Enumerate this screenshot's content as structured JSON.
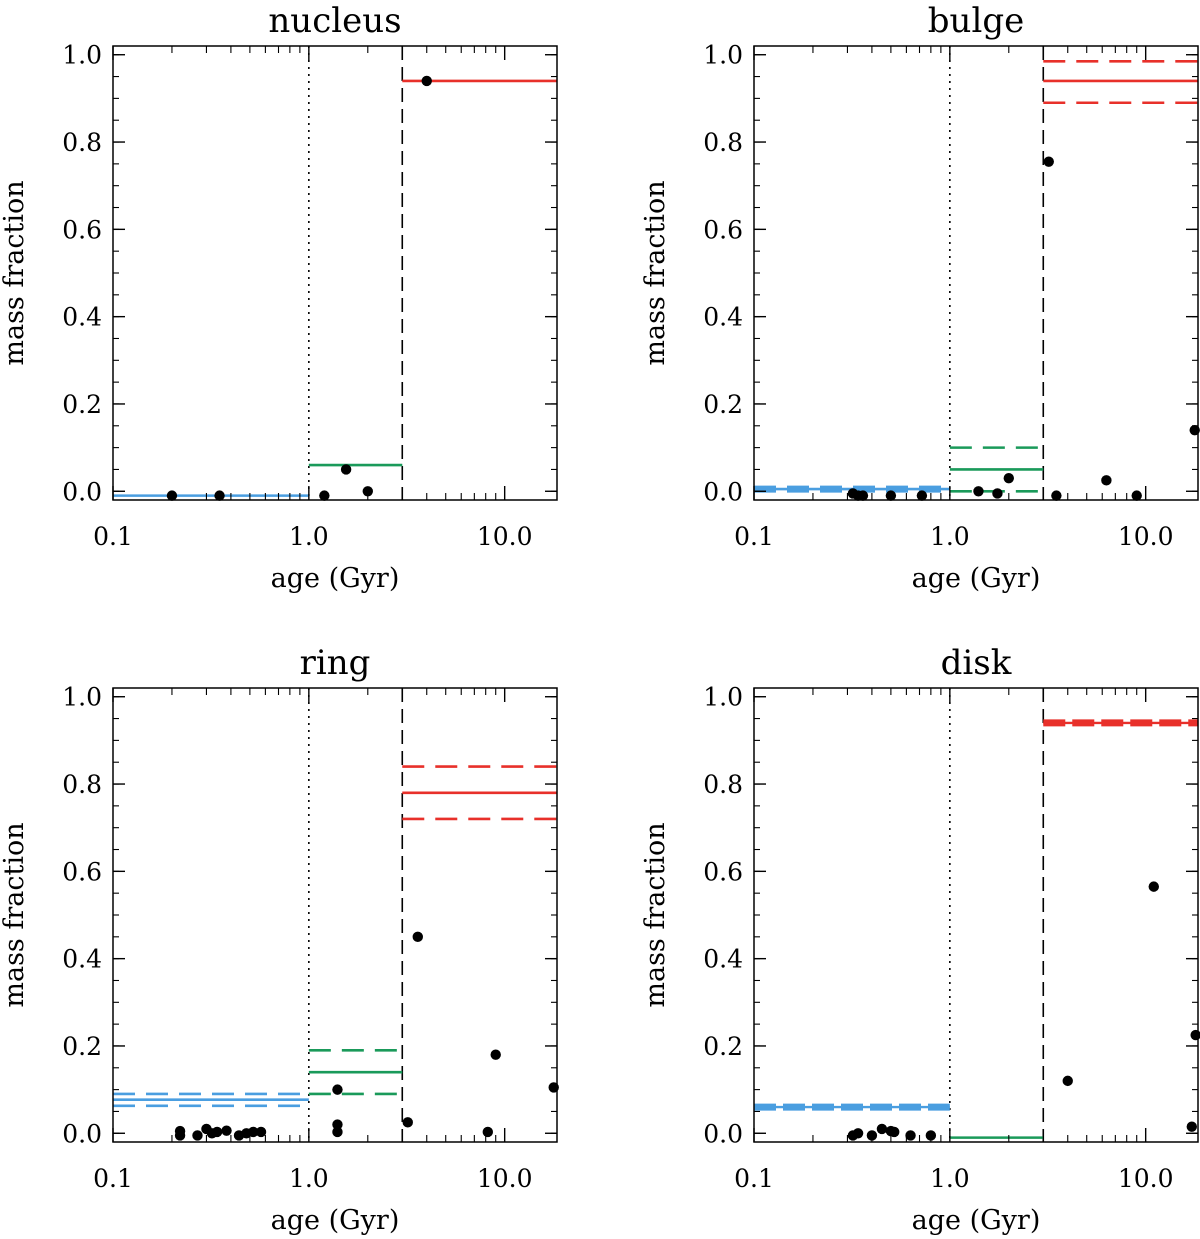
{
  "chart_data": [
    {
      "type": "scatter",
      "title": "nucleus",
      "xlabel": "age (Gyr)",
      "ylabel": "mass fraction",
      "xscale": "log",
      "xlim": [
        0.1,
        18.5
      ],
      "ylim": [
        -0.02,
        1.02
      ],
      "xticks": [
        "0.1",
        "1.0",
        "10.0"
      ],
      "yticks": [
        "0.0",
        "0.2",
        "0.4",
        "0.6",
        "0.8",
        "1.0"
      ],
      "age_bin_edges": [
        1.0,
        3.0
      ],
      "bins": [
        {
          "color": "#4a9ee0",
          "xmin": 0.1,
          "xmax": 1.0,
          "value": -0.01,
          "err_low": null,
          "err_high": null
        },
        {
          "color": "#1a9a5a",
          "xmin": 1.0,
          "xmax": 3.0,
          "value": 0.06,
          "err_low": null,
          "err_high": null
        },
        {
          "color": "#e8302a",
          "xmin": 3.0,
          "xmax": 18.5,
          "value": 0.94,
          "err_low": null,
          "err_high": null
        }
      ],
      "points": [
        [
          0.2,
          -0.01
        ],
        [
          0.35,
          -0.01
        ],
        [
          1.2,
          -0.01
        ],
        [
          1.55,
          0.05
        ],
        [
          2.0,
          0.0
        ],
        [
          4.0,
          0.94
        ]
      ]
    },
    {
      "type": "scatter",
      "title": "bulge",
      "xlabel": "age (Gyr)",
      "ylabel": "mass fraction",
      "xscale": "log",
      "xlim": [
        0.1,
        18.5
      ],
      "ylim": [
        -0.02,
        1.02
      ],
      "xticks": [
        "0.1",
        "1.0",
        "10.0"
      ],
      "yticks": [
        "0.0",
        "0.2",
        "0.4",
        "0.6",
        "0.8",
        "1.0"
      ],
      "age_bin_edges": [
        1.0,
        3.0
      ],
      "bins": [
        {
          "color": "#4a9ee0",
          "xmin": 0.1,
          "xmax": 1.0,
          "value": 0.005,
          "err_low": 0.0,
          "err_high": 0.01
        },
        {
          "color": "#1a9a5a",
          "xmin": 1.0,
          "xmax": 3.0,
          "value": 0.05,
          "err_low": 0.0,
          "err_high": 0.1
        },
        {
          "color": "#e8302a",
          "xmin": 3.0,
          "xmax": 18.5,
          "value": 0.94,
          "err_low": 0.89,
          "err_high": 0.985
        }
      ],
      "points": [
        [
          0.32,
          -0.005
        ],
        [
          0.34,
          -0.01
        ],
        [
          0.36,
          -0.01
        ],
        [
          0.5,
          -0.01
        ],
        [
          0.72,
          -0.01
        ],
        [
          3.2,
          0.755
        ],
        [
          1.4,
          0.0
        ],
        [
          1.75,
          -0.005
        ],
        [
          2.0,
          0.03
        ],
        [
          3.5,
          -0.01
        ],
        [
          6.3,
          0.025
        ],
        [
          9.0,
          -0.01
        ],
        [
          17.8,
          0.14
        ]
      ]
    },
    {
      "type": "scatter",
      "title": "ring",
      "xlabel": "age (Gyr)",
      "ylabel": "mass fraction",
      "xscale": "log",
      "xlim": [
        0.1,
        18.5
      ],
      "ylim": [
        -0.02,
        1.02
      ],
      "xticks": [
        "0.1",
        "1.0",
        "10.0"
      ],
      "yticks": [
        "0.0",
        "0.2",
        "0.4",
        "0.6",
        "0.8",
        "1.0"
      ],
      "age_bin_edges": [
        1.0,
        3.0
      ],
      "bins": [
        {
          "color": "#4a9ee0",
          "xmin": 0.1,
          "xmax": 1.0,
          "value": 0.077,
          "err_low": 0.063,
          "err_high": 0.09
        },
        {
          "color": "#1a9a5a",
          "xmin": 1.0,
          "xmax": 3.0,
          "value": 0.14,
          "err_low": 0.09,
          "err_high": 0.19
        },
        {
          "color": "#e8302a",
          "xmin": 3.0,
          "xmax": 18.5,
          "value": 0.78,
          "err_low": 0.72,
          "err_high": 0.84
        }
      ],
      "points": [
        [
          0.22,
          0.005
        ],
        [
          0.22,
          -0.005
        ],
        [
          0.27,
          -0.005
        ],
        [
          0.3,
          0.01
        ],
        [
          0.32,
          0.0
        ],
        [
          0.34,
          0.003
        ],
        [
          0.38,
          0.006
        ],
        [
          0.44,
          -0.005
        ],
        [
          0.48,
          0.0
        ],
        [
          0.52,
          0.003
        ],
        [
          0.57,
          0.003
        ],
        [
          1.4,
          0.1
        ],
        [
          1.4,
          0.02
        ],
        [
          1.4,
          0.003
        ],
        [
          3.2,
          0.025
        ],
        [
          3.6,
          0.45
        ],
        [
          8.2,
          0.003
        ],
        [
          9.0,
          0.18
        ],
        [
          17.8,
          0.105
        ]
      ]
    },
    {
      "type": "scatter",
      "title": "disk",
      "xlabel": "age (Gyr)",
      "ylabel": "mass fraction",
      "xscale": "log",
      "xlim": [
        0.1,
        18.5
      ],
      "ylim": [
        -0.02,
        1.02
      ],
      "xticks": [
        "0.1",
        "1.0",
        "10.0"
      ],
      "yticks": [
        "0.0",
        "0.2",
        "0.4",
        "0.6",
        "0.8",
        "1.0"
      ],
      "age_bin_edges": [
        1.0,
        3.0
      ],
      "bins": [
        {
          "color": "#4a9ee0",
          "xmin": 0.1,
          "xmax": 1.0,
          "value": 0.06,
          "err_low": 0.058,
          "err_high": 0.062
        },
        {
          "color": "#1a9a5a",
          "xmin": 1.0,
          "xmax": 3.0,
          "value": -0.01,
          "err_low": null,
          "err_high": null
        },
        {
          "color": "#e8302a",
          "xmin": 3.0,
          "xmax": 18.5,
          "value": 0.94,
          "err_low": 0.938,
          "err_high": 0.942
        }
      ],
      "points": [
        [
          0.32,
          -0.005
        ],
        [
          0.34,
          0.0
        ],
        [
          0.4,
          -0.005
        ],
        [
          0.45,
          0.01
        ],
        [
          0.5,
          0.005
        ],
        [
          0.52,
          0.003
        ],
        [
          0.63,
          -0.005
        ],
        [
          0.8,
          -0.005
        ],
        [
          4.0,
          0.12
        ],
        [
          11.0,
          0.565
        ],
        [
          17.2,
          0.015
        ],
        [
          18.0,
          0.225
        ]
      ]
    }
  ]
}
